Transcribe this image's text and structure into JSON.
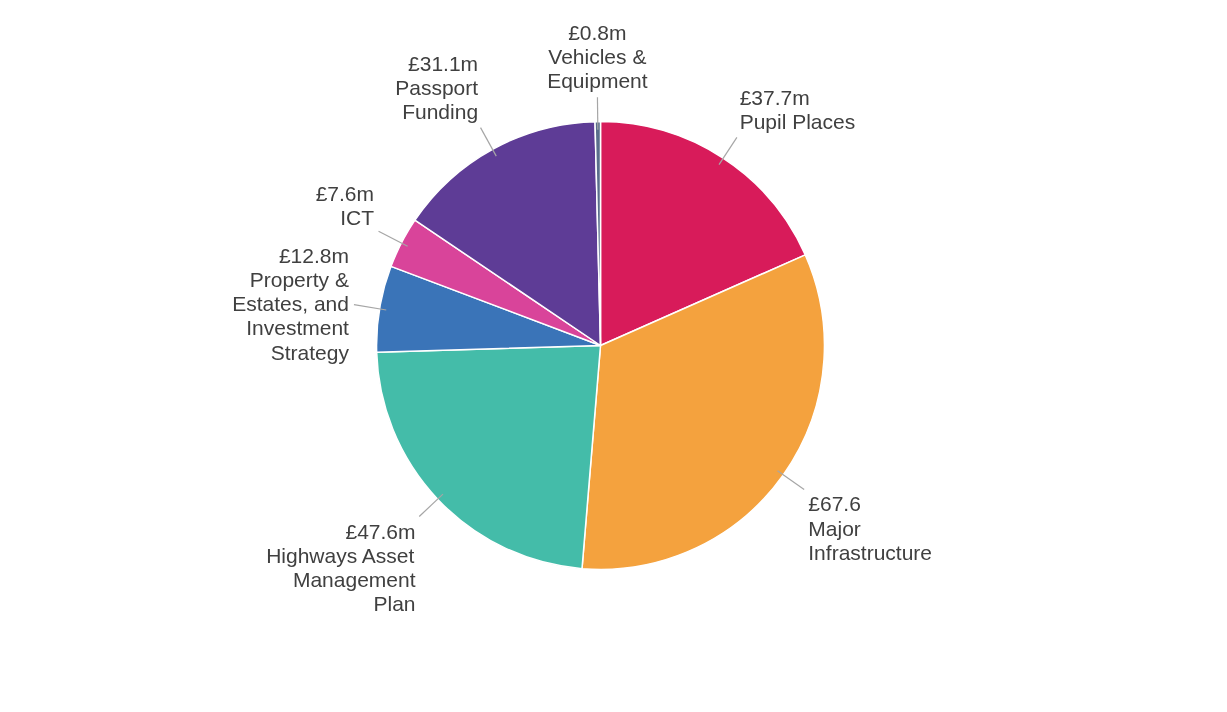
{
  "chart_data": {
    "type": "pie",
    "categories": [
      "Pupil Places",
      "Major Infrastructure",
      "Highways Asset Management Plan",
      "Property & Estates, and Investment Strategy",
      "ICT",
      "Passport Funding",
      "Vehicles & Equipment"
    ],
    "values": [
      37.7,
      67.6,
      47.6,
      12.8,
      7.6,
      31.1,
      0.8
    ],
    "value_labels": [
      "£37.7m",
      "£67.6",
      "£47.6m",
      "£12.8m",
      "£7.6m",
      "£31.1m",
      "£0.8m"
    ],
    "colors": [
      "#d81b5a",
      "#f4a23e",
      "#44bca9",
      "#3a74b8",
      "#d9449a",
      "#5e3c96",
      "#5a6e8c"
    ]
  }
}
